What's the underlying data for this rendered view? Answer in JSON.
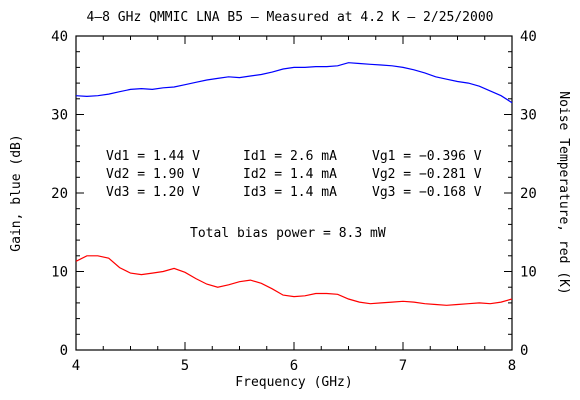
{
  "chart_data": {
    "type": "line",
    "title": "4–8 GHz QMMIC LNA B5 – Measured at 4.2 K – 2/25/2000",
    "xlabel": "Frequency (GHz)",
    "ylabel_left": "Gain, blue (dB)",
    "ylabel_right": "Noise Temperature, red (K)",
    "xlim": [
      4,
      8
    ],
    "ylim_left": [
      0,
      40
    ],
    "ylim_right": [
      0,
      40
    ],
    "x_ticks": [
      "4",
      "5",
      "6",
      "7",
      "8"
    ],
    "y_ticks_left": [
      "0",
      "10",
      "20",
      "30",
      "40"
    ],
    "y_ticks_right": [
      "0",
      "10",
      "20",
      "30",
      "40"
    ],
    "grid": false,
    "series": [
      {
        "color": "#0000ff",
        "axis": "left",
        "x": [
          4.0,
          4.1,
          4.2,
          4.3,
          4.4,
          4.5,
          4.6,
          4.7,
          4.8,
          4.9,
          5.0,
          5.1,
          5.2,
          5.3,
          5.4,
          5.5,
          5.6,
          5.7,
          5.8,
          5.9,
          6.0,
          6.1,
          6.2,
          6.3,
          6.4,
          6.5,
          6.6,
          6.7,
          6.8,
          6.9,
          7.0,
          7.1,
          7.2,
          7.3,
          7.4,
          7.5,
          7.6,
          7.7,
          7.8,
          7.9,
          8.0
        ],
        "values": [
          32.4,
          32.3,
          32.4,
          32.6,
          32.9,
          33.2,
          33.3,
          33.2,
          33.4,
          33.5,
          33.8,
          34.1,
          34.4,
          34.6,
          34.8,
          34.7,
          34.9,
          35.1,
          35.4,
          35.8,
          36.0,
          36.0,
          36.1,
          36.1,
          36.2,
          36.6,
          36.5,
          36.4,
          36.3,
          36.2,
          36.0,
          35.7,
          35.3,
          34.8,
          34.5,
          34.2,
          34.0,
          33.6,
          33.0,
          32.4,
          31.5
        ]
      },
      {
        "color": "#ff0000",
        "axis": "right",
        "x": [
          4.0,
          4.1,
          4.2,
          4.3,
          4.4,
          4.5,
          4.6,
          4.7,
          4.8,
          4.9,
          5.0,
          5.1,
          5.2,
          5.3,
          5.4,
          5.5,
          5.6,
          5.7,
          5.8,
          5.9,
          6.0,
          6.1,
          6.2,
          6.3,
          6.4,
          6.5,
          6.6,
          6.7,
          6.8,
          6.9,
          7.0,
          7.1,
          7.2,
          7.3,
          7.4,
          7.5,
          7.6,
          7.7,
          7.8,
          7.9,
          8.0
        ],
        "values": [
          11.3,
          12.0,
          12.0,
          11.7,
          10.5,
          9.8,
          9.6,
          9.8,
          10.0,
          10.4,
          9.9,
          9.1,
          8.4,
          8.0,
          8.3,
          8.7,
          8.9,
          8.5,
          7.8,
          7.0,
          6.8,
          6.9,
          7.2,
          7.2,
          7.1,
          6.5,
          6.1,
          5.9,
          6.0,
          6.1,
          6.2,
          6.1,
          5.9,
          5.8,
          5.7,
          5.8,
          5.9,
          6.0,
          5.9,
          6.1,
          6.5
        ]
      }
    ],
    "annotations": {
      "bias": [
        [
          "Vd1 = 1.44 V",
          "Id1 = 2.6 mA",
          "Vg1 = −0.396 V"
        ],
        [
          "Vd2 = 1.90 V",
          "Id2 = 1.4 mA",
          "Vg2 = −0.281 V"
        ],
        [
          "Vd3 = 1.20 V",
          "Id3 = 1.4 mA",
          "Vg3 = −0.168 V"
        ]
      ],
      "total_power": "Total bias power = 8.3 mW"
    }
  }
}
